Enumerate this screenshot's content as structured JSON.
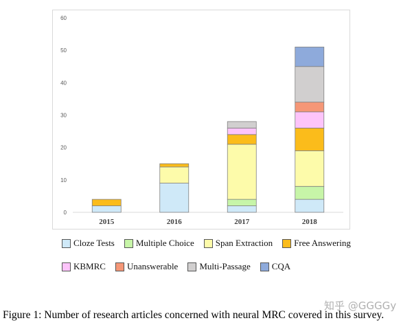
{
  "chart_data": {
    "type": "bar",
    "stacked": true,
    "categories": [
      "2015",
      "2016",
      "2017",
      "2018"
    ],
    "ylim": [
      0,
      60
    ],
    "yticks": [
      0,
      10,
      20,
      30,
      40,
      50,
      60
    ],
    "grid": false,
    "legend_position": "bottom",
    "series": [
      {
        "name": "Cloze Tests",
        "color": "#cfe9f8",
        "values": [
          2,
          9,
          2,
          4
        ]
      },
      {
        "name": "Multiple Choice",
        "color": "#c7f5a8",
        "values": [
          0,
          0,
          2,
          4
        ]
      },
      {
        "name": "Span Extraction",
        "color": "#fdfbaa",
        "values": [
          0,
          5,
          17,
          11
        ]
      },
      {
        "name": "Free Answering",
        "color": "#fbbc1b",
        "values": [
          2,
          1,
          3,
          7
        ]
      },
      {
        "name": "KBMRC",
        "color": "#fdc4fa",
        "values": [
          0,
          0,
          2,
          5
        ]
      },
      {
        "name": "Unanswerable",
        "color": "#f59777",
        "values": [
          0,
          0,
          0,
          3
        ]
      },
      {
        "name": "Multi-Passage",
        "color": "#d1cfcf",
        "values": [
          0,
          0,
          2,
          11
        ]
      },
      {
        "name": "CQA",
        "color": "#8eaadb",
        "values": [
          0,
          0,
          0,
          6
        ]
      }
    ]
  },
  "caption": "Figure 1: Number of research articles concerned with neural MRC covered in this survey.",
  "watermark": "知乎 @GGGGy"
}
